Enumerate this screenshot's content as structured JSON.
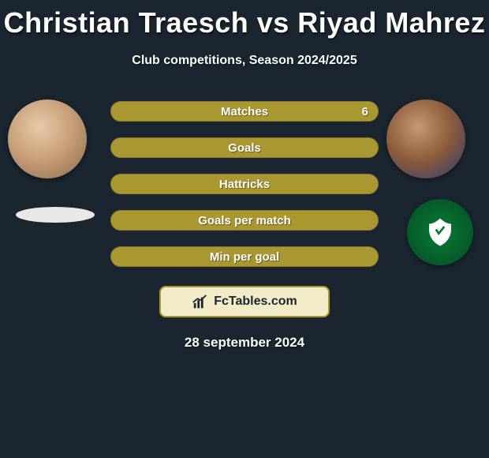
{
  "title": "Christian Traesch vs Riyad Mahrez",
  "subtitle": "Club competitions, Season 2024/2025",
  "date": "28 september 2024",
  "brand": "FcTables.com",
  "colors": {
    "bar_fill": "#a99832",
    "bar_border": "#8a7c28",
    "background": "#1a2530",
    "logo_bg": "#f3eac8"
  },
  "bars": [
    {
      "label": "Matches",
      "left_val": "",
      "right_val": "6",
      "left_pct": 0,
      "right_pct": 100
    },
    {
      "label": "Goals",
      "left_val": "",
      "right_val": "",
      "left_pct": 50,
      "right_pct": 50
    },
    {
      "label": "Hattricks",
      "left_val": "",
      "right_val": "",
      "left_pct": 50,
      "right_pct": 50
    },
    {
      "label": "Goals per match",
      "left_val": "",
      "right_val": "",
      "left_pct": 50,
      "right_pct": 50
    },
    {
      "label": "Min per goal",
      "left_val": "",
      "right_val": "",
      "left_pct": 50,
      "right_pct": 50
    }
  ]
}
